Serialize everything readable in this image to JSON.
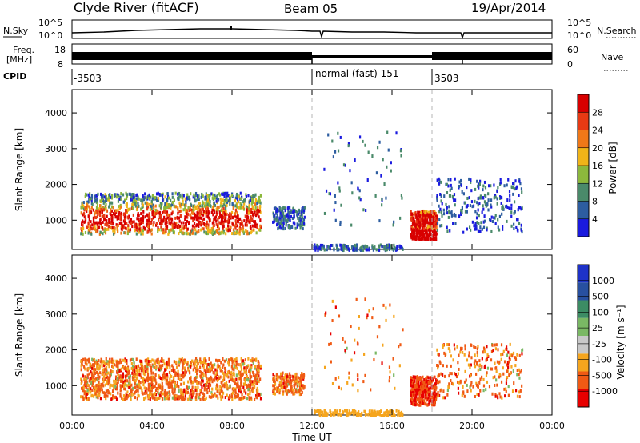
{
  "header": {
    "station": "Clyde River (fitACF)",
    "beam": "Beam 05",
    "date": "19/Apr/2014"
  },
  "noise_panel": {
    "left_label": "N.Sky",
    "right_label": "N.Search",
    "left_ticks": [
      "10^5",
      "10^0"
    ],
    "right_ticks": [
      "10^5",
      "10^0"
    ]
  },
  "freq_panel": {
    "left_label_1": "Freq.",
    "left_label_2": "[MHz]",
    "right_label": "Nave",
    "left_ticks": [
      "18",
      "8"
    ],
    "right_ticks": [
      "60",
      "0"
    ]
  },
  "cpid_panel": {
    "label": "CPID",
    "entries": [
      "-3503",
      "normal (fast) 151",
      "3503"
    ]
  },
  "chart_data": [
    {
      "type": "heatmap",
      "title": "",
      "xlabel": "",
      "ylabel": "Slant Range [km]",
      "colorbar_label": "Power [dB]",
      "colorbar_ticks": [
        "4",
        "8",
        "12",
        "16",
        "20",
        "24",
        "28"
      ],
      "colorbar_range": [
        0,
        32
      ],
      "x_range_hours": [
        0,
        24
      ],
      "ylim": [
        180,
        4650
      ],
      "y_ticks": [
        "1000",
        "2000",
        "3000",
        "4000"
      ],
      "colors": [
        "#1a1adf",
        "#2d5da0",
        "#4a8a6a",
        "#8cb83c",
        "#f0b418",
        "#f07818",
        "#e83a14",
        "#d80000"
      ],
      "scatter_regions": [
        {
          "t": [
            0.3,
            9.5
          ],
          "range": [
            600,
            1800
          ],
          "value": "20-30 dB"
        },
        {
          "t": [
            16.8,
            18.2
          ],
          "range": [
            500,
            1300
          ],
          "value": "20-30 dB"
        },
        {
          "t": [
            9.5,
            22.5
          ],
          "range": [
            700,
            2300
          ],
          "value": "4-12 dB"
        }
      ]
    },
    {
      "type": "heatmap",
      "title": "",
      "xlabel": "Time UT",
      "ylabel": "Slant Range [km]",
      "colorbar_label": "Velocity [m s⁻¹]",
      "colorbar_ticks": [
        "-1000",
        "-500",
        "-100",
        "-25",
        "25",
        "100",
        "500",
        "1000"
      ],
      "colorbar_range": [
        -1250,
        1250
      ],
      "x_range_hours": [
        0,
        24
      ],
      "ylim": [
        180,
        4650
      ],
      "y_ticks": [
        "1000",
        "2000",
        "3000",
        "4000"
      ],
      "x_ticks": [
        "00:00",
        "04:00",
        "08:00",
        "12:00",
        "16:00",
        "20:00",
        "00:00"
      ],
      "colors": [
        "#e80000",
        "#f05a14",
        "#f5a51e",
        "#c8c8c8",
        "#7ab864",
        "#3c8c64",
        "#2850a0",
        "#1e32c8"
      ],
      "scatter_regions": [
        {
          "t": [
            0.3,
            9.5
          ],
          "range": [
            600,
            1800
          ],
          "value": "-100 to -500 m/s"
        },
        {
          "t": [
            16.8,
            18.2
          ],
          "range": [
            500,
            1300
          ],
          "value": "-500 to -1000 m/s"
        }
      ]
    }
  ]
}
